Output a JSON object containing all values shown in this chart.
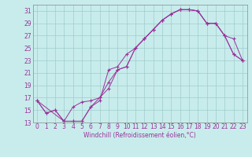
{
  "xlabel": "Windchill (Refroidissement éolien,°C)",
  "bg_color": "#c8ecec",
  "grid_color": "#a0cccc",
  "line_color": "#993399",
  "xlim": [
    -0.5,
    23.5
  ],
  "ylim": [
    13,
    32
  ],
  "yticks": [
    13,
    15,
    17,
    19,
    21,
    23,
    25,
    27,
    29,
    31
  ],
  "xticks": [
    0,
    1,
    2,
    3,
    4,
    5,
    6,
    7,
    8,
    9,
    10,
    11,
    12,
    13,
    14,
    15,
    16,
    17,
    18,
    19,
    20,
    21,
    22,
    23
  ],
  "line1_x": [
    0,
    1,
    2,
    3,
    4,
    5,
    6,
    7,
    8,
    9,
    10,
    11,
    12,
    13,
    14,
    15,
    16,
    17,
    18,
    19,
    20,
    21,
    22,
    23
  ],
  "line1_y": [
    16.5,
    14.5,
    15.0,
    13.2,
    15.5,
    16.3,
    16.5,
    17.0,
    18.5,
    21.5,
    22.0,
    25.0,
    26.5,
    28.0,
    29.5,
    30.5,
    31.2,
    31.2,
    31.0,
    29.0,
    29.0,
    27.0,
    24.0,
    23.0
  ],
  "line2_x": [
    0,
    1,
    2,
    3,
    4,
    5,
    6,
    7,
    8,
    9,
    10,
    11,
    12,
    13,
    14,
    15,
    16,
    17,
    18,
    19,
    20,
    21,
    22,
    23
  ],
  "line2_y": [
    16.5,
    14.5,
    15.0,
    13.2,
    13.2,
    13.2,
    15.5,
    16.5,
    21.5,
    22.0,
    24.0,
    25.0,
    26.5,
    28.0,
    29.5,
    30.5,
    31.2,
    31.2,
    31.0,
    29.0,
    29.0,
    27.0,
    26.5,
    23.0
  ],
  "line3_x": [
    0,
    3,
    4,
    5,
    6,
    7,
    8,
    9,
    10,
    11,
    12,
    13,
    14,
    15,
    16,
    17,
    18,
    19,
    20,
    21,
    22,
    23
  ],
  "line3_y": [
    16.5,
    13.2,
    13.2,
    13.2,
    15.5,
    17.0,
    19.5,
    21.5,
    22.0,
    25.0,
    26.5,
    28.0,
    29.5,
    30.5,
    31.2,
    31.2,
    31.0,
    29.0,
    29.0,
    27.0,
    24.0,
    23.0
  ],
  "tick_fontsize": 5.5,
  "xlabel_fontsize": 5.5
}
